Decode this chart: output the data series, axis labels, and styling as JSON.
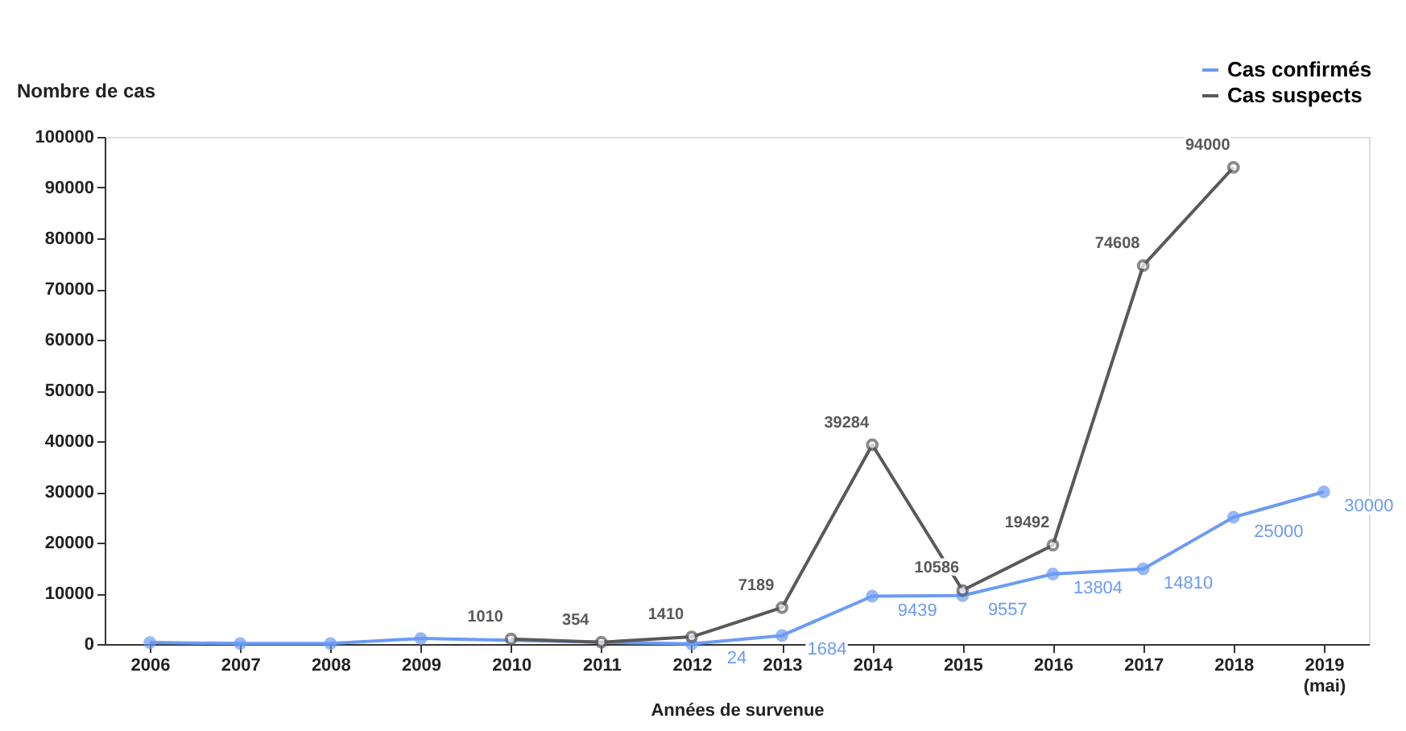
{
  "chart_data": {
    "type": "line",
    "ylabel": "Nombre de cas",
    "xlabel": "Années de survenue",
    "categories": [
      "2006",
      "2007",
      "2008",
      "2009",
      "2010",
      "2011",
      "2012",
      "2013",
      "2014",
      "2015",
      "2016",
      "2017",
      "2018",
      "2019\n(mai)"
    ],
    "ylim": [
      0,
      100000
    ],
    "yticks": [
      0,
      10000,
      20000,
      30000,
      40000,
      50000,
      60000,
      70000,
      80000,
      90000,
      100000
    ],
    "grid": false,
    "legend": "top right",
    "marker": "circle",
    "line_style": "solid",
    "series": [
      {
        "name": "Cas confirmés",
        "color": "#6b9bf5",
        "values": [
          300,
          100,
          100,
          1100,
          null,
          null,
          24,
          1684,
          9439,
          9557,
          13804,
          14810,
          25000,
          30000
        ],
        "value_labels": [
          null,
          null,
          null,
          null,
          null,
          null,
          "24",
          "1684",
          "9439",
          "9557",
          "13804",
          "14810",
          "25000",
          "30000"
        ]
      },
      {
        "name": "Cas suspects",
        "color": "#595959",
        "values": [
          null,
          null,
          null,
          null,
          1010,
          354,
          1410,
          7189,
          39284,
          10586,
          19492,
          74608,
          94000,
          null
        ],
        "value_labels": [
          null,
          null,
          null,
          null,
          "1010",
          "354",
          "1410",
          "7189",
          "39284",
          "10586",
          "19492",
          "74608",
          "94000",
          null
        ]
      }
    ]
  }
}
